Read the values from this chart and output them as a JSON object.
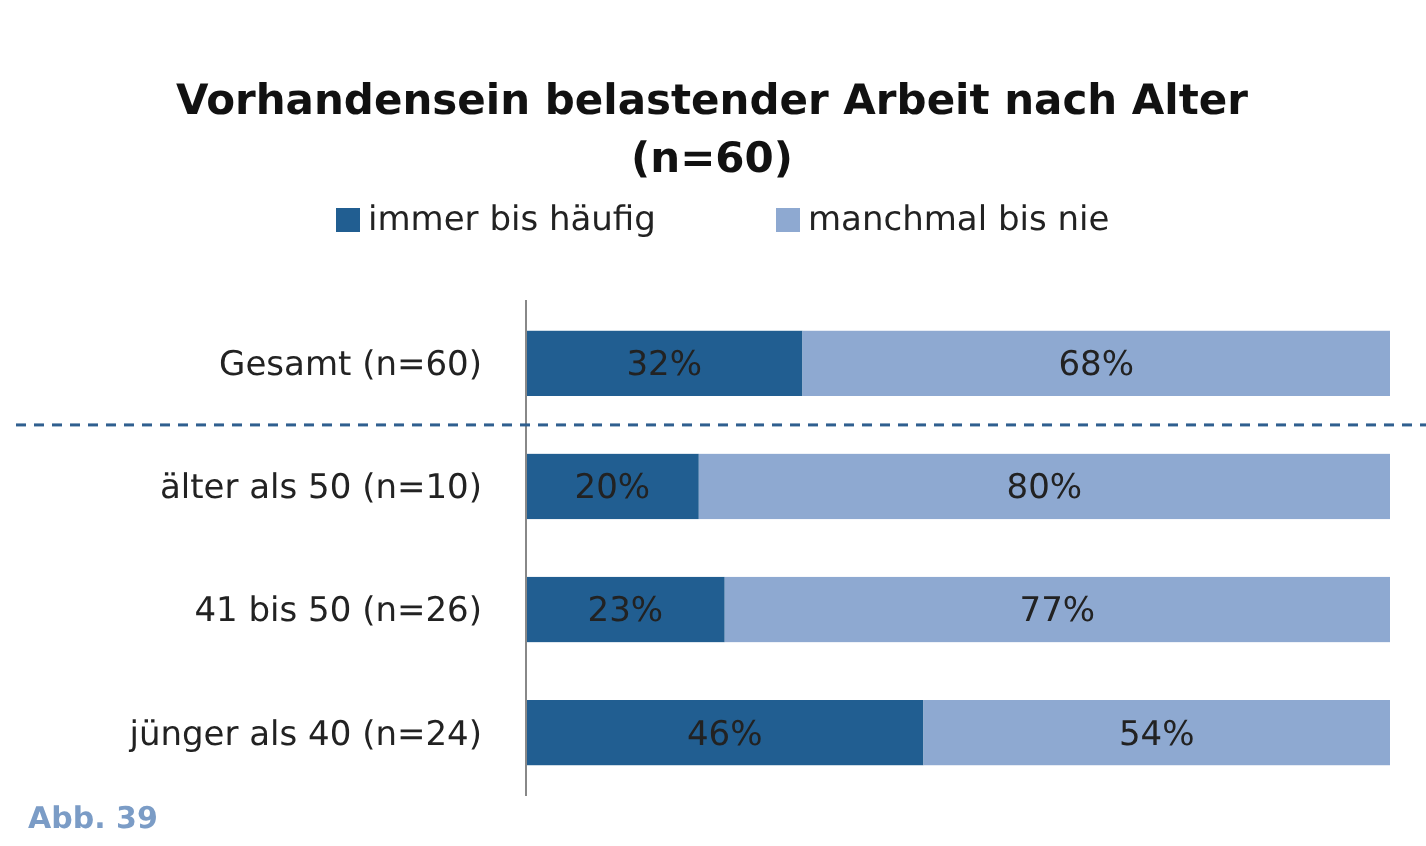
{
  "chart_data": {
    "type": "bar",
    "orientation": "horizontal",
    "stacked": true,
    "title": "Vorhandensein belastender Arbeit nach Alter",
    "subtitle": "(n=60)",
    "categories": [
      "Gesamt (n=60)",
      "älter als 50 (n=10)",
      "41 bis 50 (n=26)",
      "jünger als 40 (n=24)"
    ],
    "series": [
      {
        "name": "immer bis häufig",
        "color": "#215e91",
        "values": [
          32,
          20,
          23,
          46
        ],
        "value_labels": [
          "32%",
          "20%",
          "23%",
          "46%"
        ]
      },
      {
        "name": "manchmal bis nie",
        "color": "#8ea9d1",
        "values": [
          68,
          80,
          77,
          54
        ],
        "value_labels": [
          "68%",
          "80%",
          "77%",
          "54%"
        ]
      }
    ],
    "xlim": [
      0,
      100
    ],
    "legend": "top",
    "tick_labels": "y",
    "annotations": [
      "Abb. 39"
    ]
  }
}
